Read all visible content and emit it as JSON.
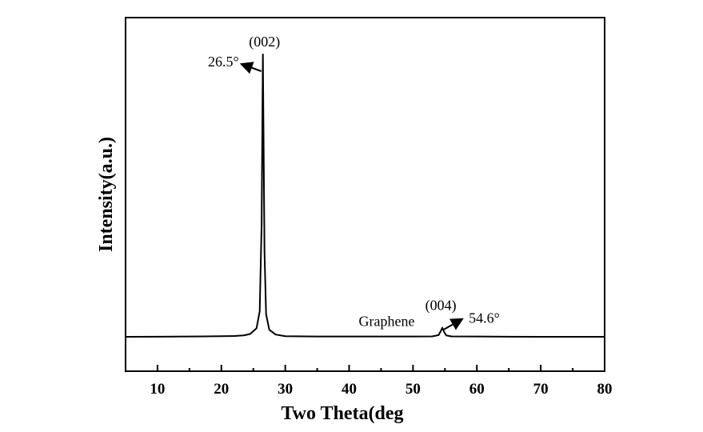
{
  "chart_data": {
    "type": "line",
    "title": "",
    "xlabel": "Two Theta(deg",
    "ylabel": "Intensity(a.u.)",
    "xlim": [
      5,
      80
    ],
    "ylim": [
      0,
      105
    ],
    "x_ticks": [
      10,
      20,
      30,
      40,
      50,
      60,
      70,
      80
    ],
    "y_ticks_shown": false,
    "grid": false,
    "legend": "none",
    "series": [
      {
        "name": "Graphene",
        "x": [
          5,
          10,
          15,
          20,
          22,
          23.5,
          24.5,
          25.5,
          26.0,
          26.3,
          26.45,
          26.5,
          26.55,
          26.75,
          27.0,
          27.5,
          28.5,
          30,
          35,
          40,
          45,
          50,
          53,
          54.0,
          54.3,
          54.6,
          54.9,
          55.2,
          56,
          60,
          65,
          70,
          75,
          80
        ],
        "y": [
          0.0,
          0.05,
          0.1,
          0.2,
          0.3,
          0.5,
          1.0,
          3.0,
          9.0,
          40.0,
          85.0,
          100.0,
          85.0,
          30.0,
          8.0,
          2.5,
          0.8,
          0.2,
          0.1,
          0.1,
          0.1,
          0.1,
          0.15,
          0.6,
          1.8,
          3.2,
          1.6,
          0.5,
          0.15,
          0.1,
          0.05,
          0.0,
          0.0,
          0.0
        ],
        "color": "#000000"
      }
    ],
    "annotations": [
      {
        "text": "(002)",
        "x": 26.5,
        "y": 100,
        "role": "peak-index"
      },
      {
        "text": "26.5°",
        "x": 26.5,
        "y": 100,
        "role": "peak-position"
      },
      {
        "text": "(004)",
        "x": 54.6,
        "y": 3.2,
        "role": "peak-index"
      },
      {
        "text": "54.6°",
        "x": 54.6,
        "y": 3.2,
        "role": "peak-position"
      },
      {
        "text": "Graphene",
        "x": 45,
        "y": 0.1,
        "role": "series-label"
      }
    ]
  }
}
